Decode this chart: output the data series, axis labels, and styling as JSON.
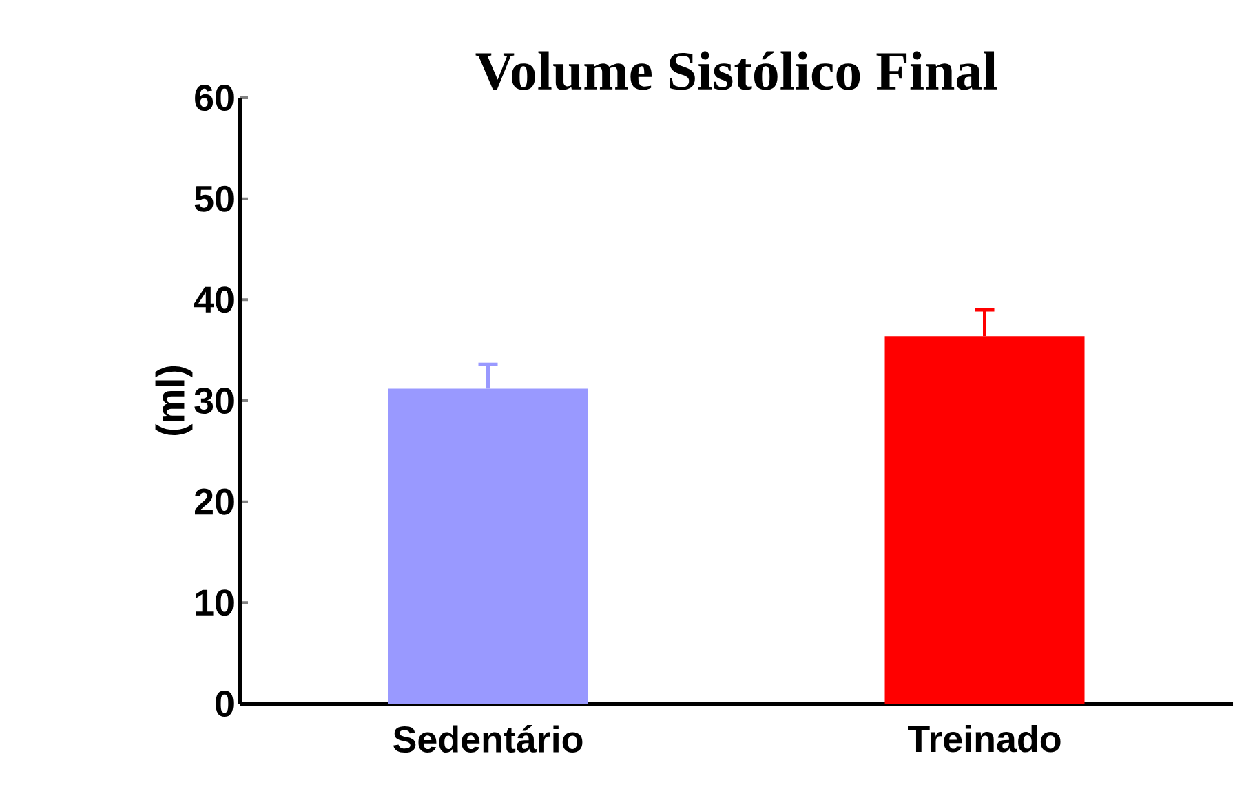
{
  "chart_data": {
    "type": "bar",
    "title": "Volume Sistólico Final",
    "ylabel": "(ml)",
    "categories": [
      "Sedentário",
      "Treinado"
    ],
    "values": [
      31.2,
      36.4
    ],
    "errors": [
      [
        31.2,
        33.6
      ],
      [
        36.4,
        39.0
      ]
    ],
    "colors": [
      "#9999ff",
      "#ff0000"
    ],
    "ylim": [
      0,
      60
    ],
    "yticks": [
      0,
      10,
      20,
      30,
      40,
      50,
      60
    ],
    "grid": false,
    "legend": false
  }
}
